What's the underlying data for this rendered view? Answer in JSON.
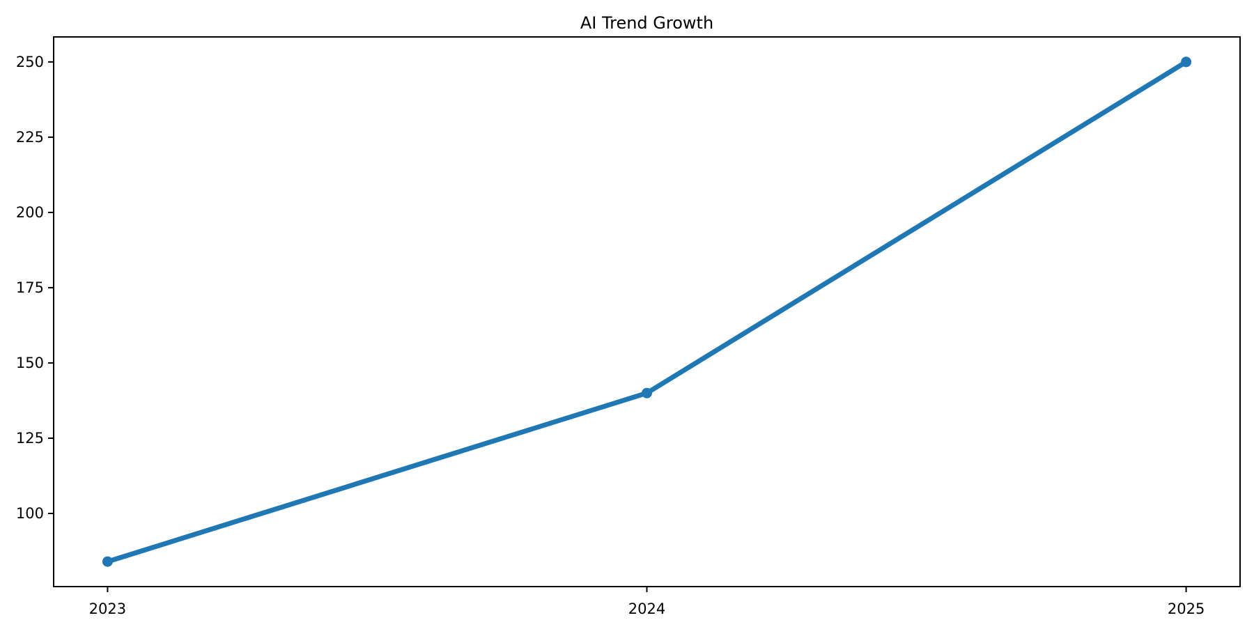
{
  "chart_data": {
    "type": "line",
    "title": "AI Trend Growth",
    "x": [
      2023,
      2024,
      2025
    ],
    "values": [
      84,
      140,
      250
    ],
    "xlabel": "",
    "ylabel": "",
    "xticks": [
      2023,
      2024,
      2025
    ],
    "xtick_labels": [
      "2023",
      "2024",
      "2025"
    ],
    "yticks": [
      100,
      125,
      150,
      175,
      200,
      225,
      250
    ],
    "ytick_labels": [
      "100",
      "125",
      "150",
      "175",
      "200",
      "225",
      "250"
    ],
    "xlim": [
      2022.9,
      2025.1
    ],
    "ylim": [
      75.7,
      258.3
    ],
    "grid": false,
    "legend": null,
    "line_color": "#1f77b4",
    "marker": "circle",
    "background_color": "#ffffff",
    "spine_color": "#000000",
    "text_color": "#000000"
  }
}
